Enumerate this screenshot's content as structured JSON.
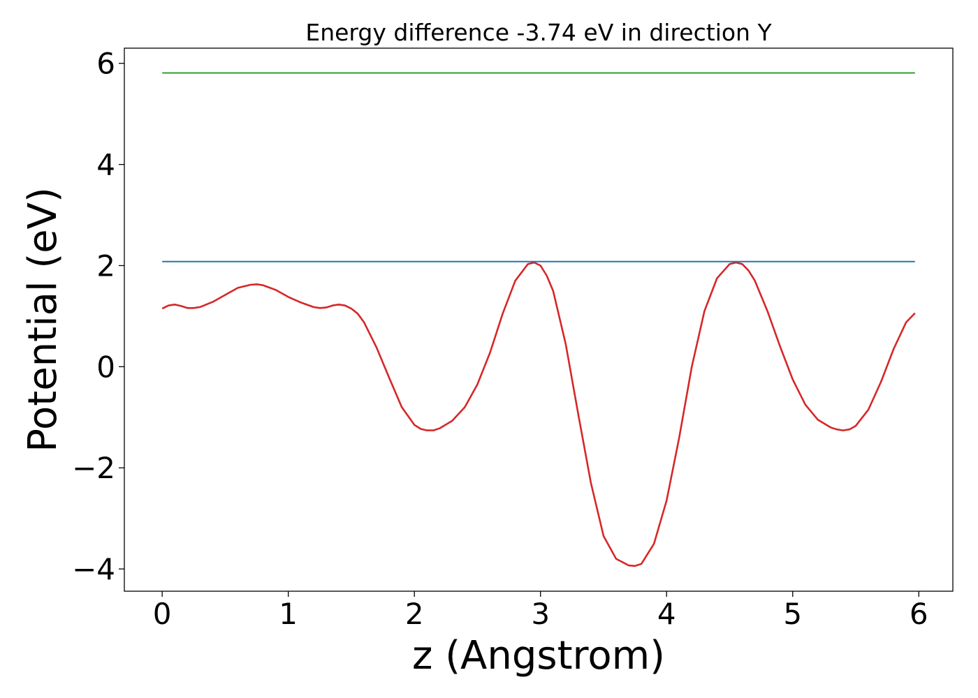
{
  "chart_data": {
    "type": "line",
    "title": "Energy difference -3.74 eV in direction Y",
    "xlabel": "z (Angstrom)",
    "ylabel": "Potential (eV)",
    "xlim": [
      -0.3,
      6.27
    ],
    "ylim": [
      -4.44,
      6.3
    ],
    "x_ticks": [
      0,
      1,
      2,
      3,
      4,
      5,
      6
    ],
    "x_tick_labels": [
      "0",
      "1",
      "2",
      "3",
      "4",
      "5",
      "6"
    ],
    "y_ticks": [
      -4,
      -2,
      0,
      2,
      4,
      6
    ],
    "y_tick_labels": [
      "−4",
      "−2",
      "0",
      "2",
      "4",
      "6"
    ],
    "grid": false,
    "legend": "none",
    "series": [
      {
        "color": "#d62728",
        "x": [
          0.0,
          0.05,
          0.1,
          0.15,
          0.2,
          0.25,
          0.3,
          0.4,
          0.5,
          0.6,
          0.7,
          0.75,
          0.8,
          0.9,
          1.0,
          1.1,
          1.2,
          1.25,
          1.3,
          1.35,
          1.4,
          1.45,
          1.5,
          1.55,
          1.6,
          1.7,
          1.8,
          1.9,
          2.0,
          2.05,
          2.1,
          2.15,
          2.2,
          2.3,
          2.4,
          2.5,
          2.6,
          2.7,
          2.8,
          2.9,
          2.95,
          3.0,
          3.05,
          3.1,
          3.2,
          3.3,
          3.4,
          3.5,
          3.6,
          3.7,
          3.75,
          3.8,
          3.9,
          4.0,
          4.1,
          4.2,
          4.3,
          4.4,
          4.5,
          4.55,
          4.6,
          4.65,
          4.7,
          4.8,
          4.9,
          5.0,
          5.1,
          5.2,
          5.3,
          5.35,
          5.4,
          5.45,
          5.5,
          5.6,
          5.7,
          5.8,
          5.9,
          5.97
        ],
        "y": [
          1.15,
          1.21,
          1.23,
          1.2,
          1.16,
          1.16,
          1.18,
          1.28,
          1.42,
          1.56,
          1.62,
          1.63,
          1.61,
          1.52,
          1.38,
          1.27,
          1.18,
          1.16,
          1.17,
          1.21,
          1.23,
          1.21,
          1.15,
          1.05,
          0.88,
          0.38,
          -0.22,
          -0.8,
          -1.15,
          -1.23,
          -1.26,
          -1.26,
          -1.22,
          -1.07,
          -0.8,
          -0.35,
          0.28,
          1.05,
          1.7,
          2.03,
          2.06,
          2.0,
          1.8,
          1.5,
          0.45,
          -0.95,
          -2.3,
          -3.35,
          -3.8,
          -3.93,
          -3.94,
          -3.9,
          -3.5,
          -2.65,
          -1.4,
          0.0,
          1.1,
          1.75,
          2.03,
          2.06,
          2.03,
          1.9,
          1.7,
          1.1,
          0.4,
          -0.25,
          -0.75,
          -1.05,
          -1.2,
          -1.24,
          -1.26,
          -1.24,
          -1.17,
          -0.85,
          -0.3,
          0.35,
          0.88,
          1.06
        ]
      },
      {
        "color": "#1f77b4",
        "x": [
          0.0,
          5.97
        ],
        "y": [
          2.08,
          2.08
        ]
      },
      {
        "color": "#2ca02c",
        "x": [
          0.0,
          5.97
        ],
        "y": [
          5.81,
          5.81
        ]
      }
    ]
  }
}
